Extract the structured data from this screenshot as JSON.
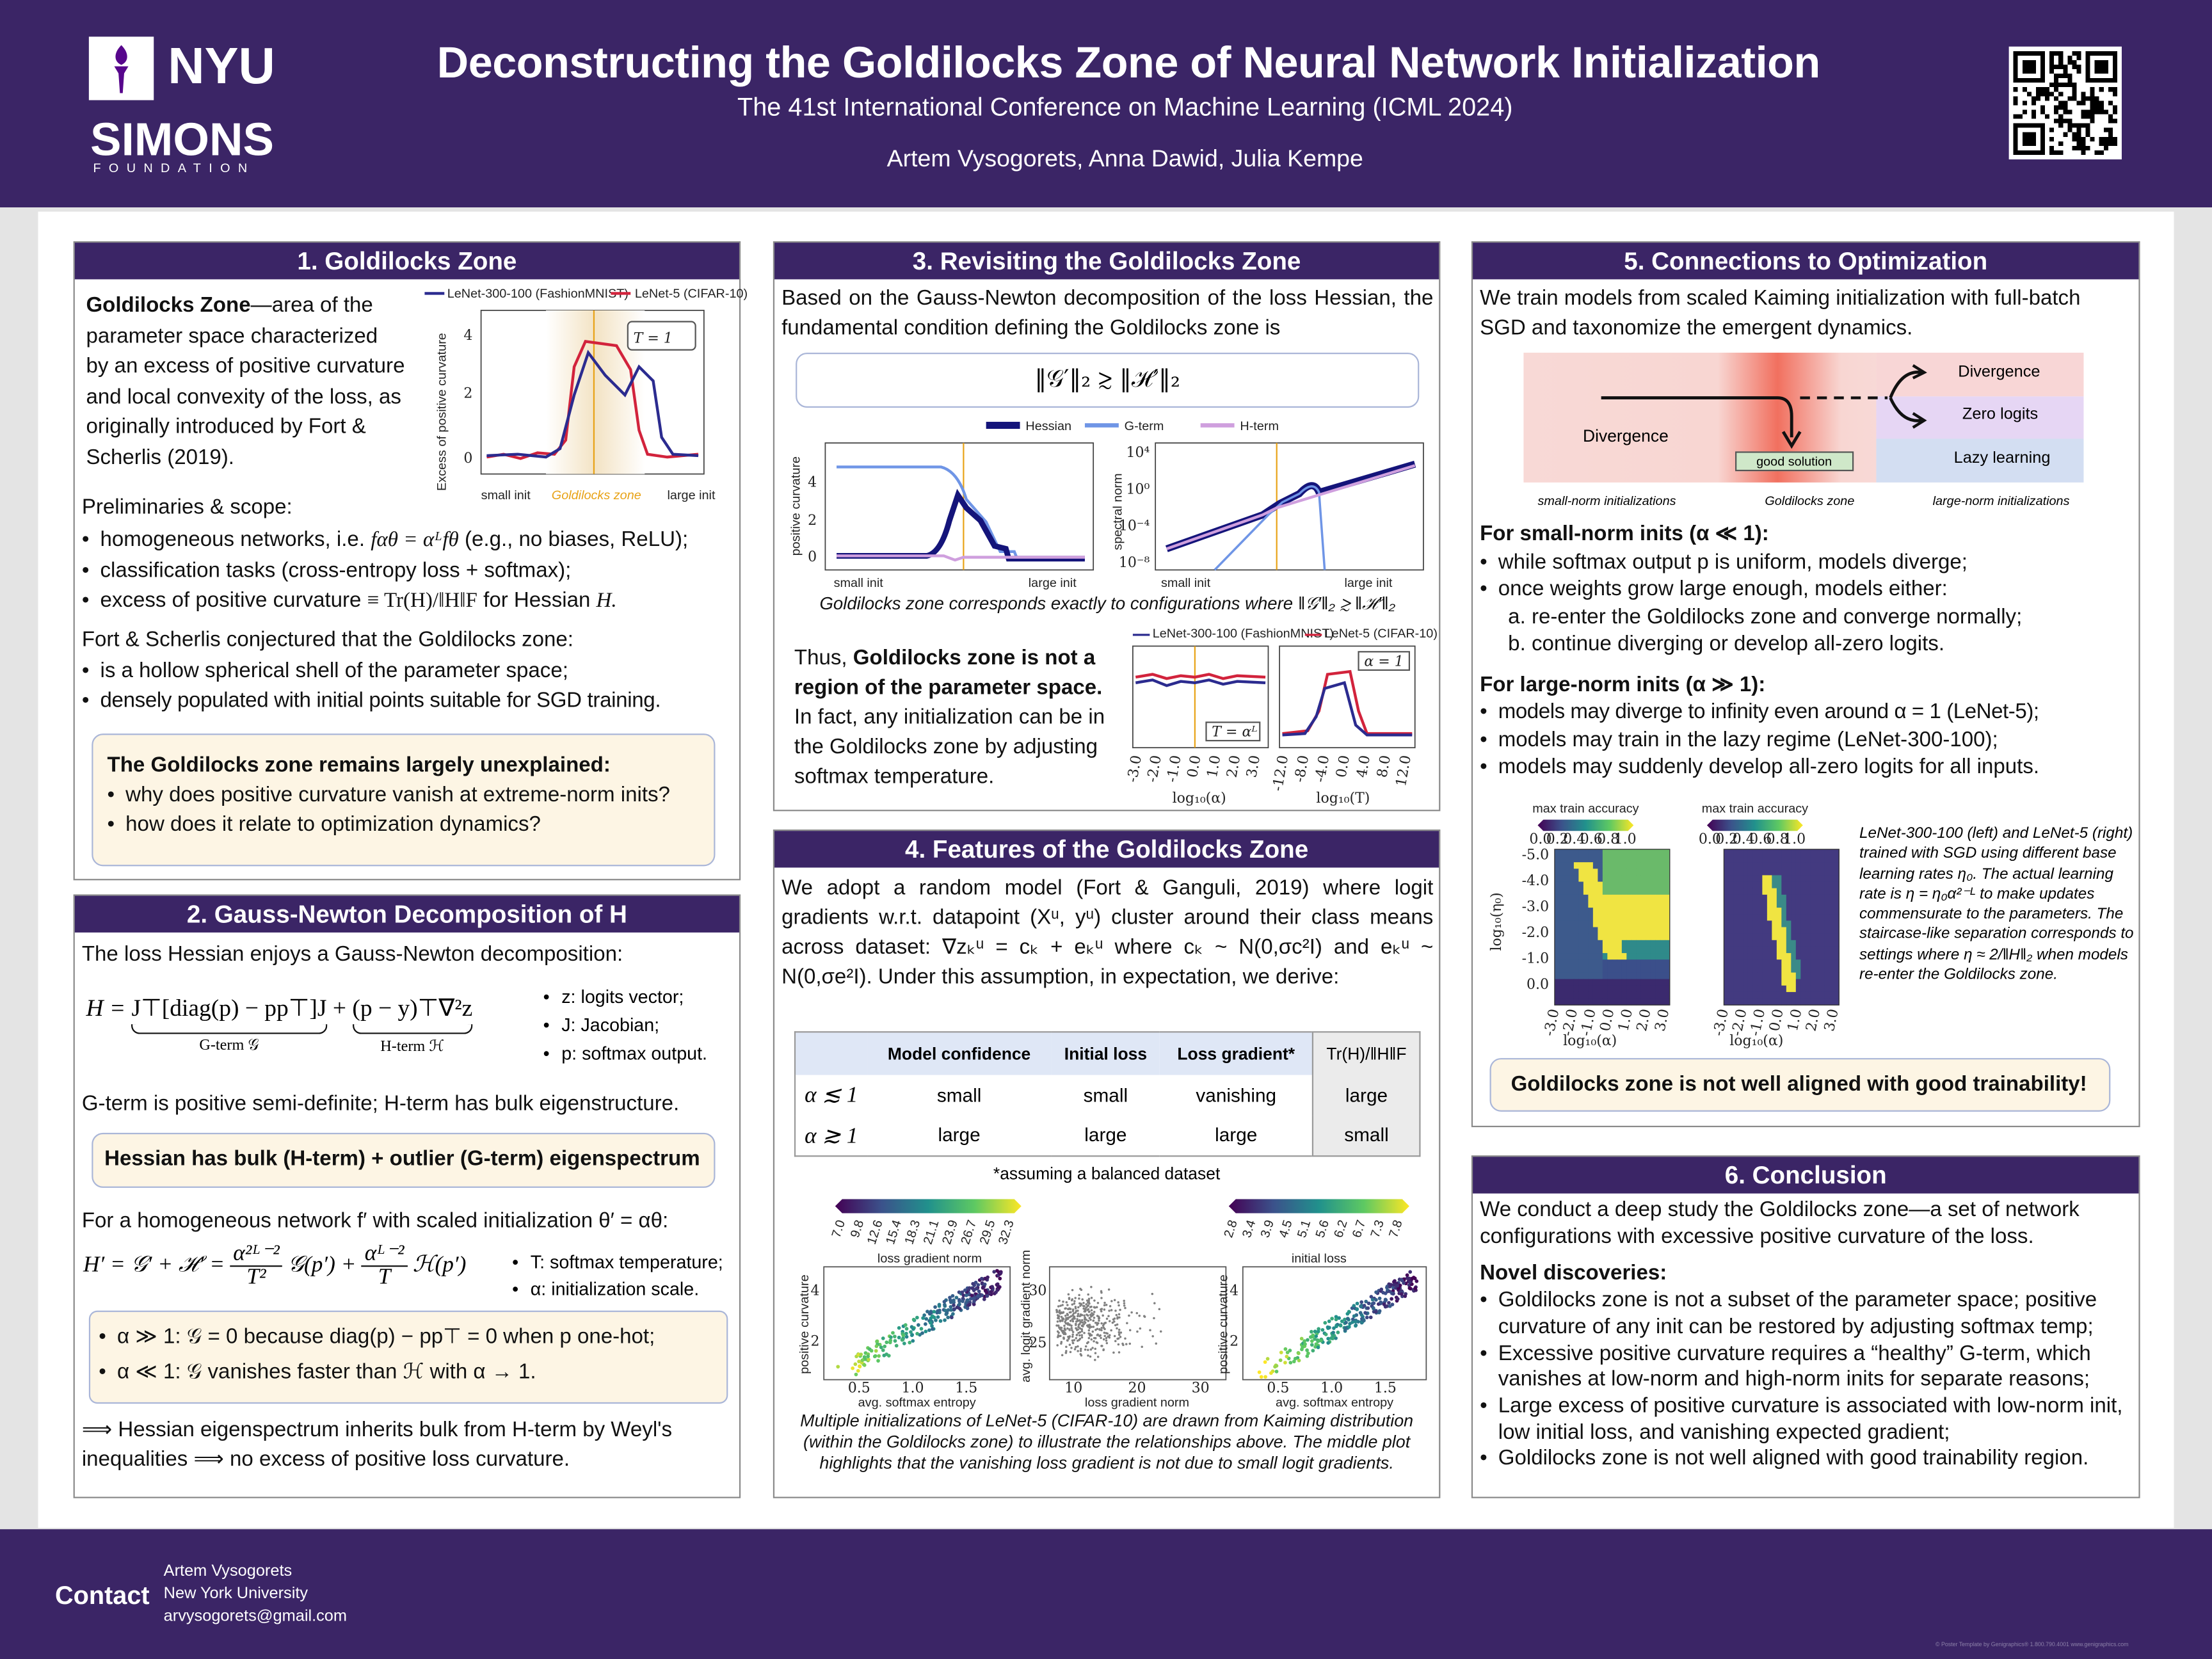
{
  "header": {
    "logo_nyu": "NYU",
    "logo_simons": "SIMONS",
    "logo_foundation": "FOUNDATION",
    "title": "Deconstructing the Goldilocks Zone of Neural Network Initialization",
    "subtitle": "The 41st International Conference on Machine Learning (ICML 2024)",
    "authors": "Artem Vysogorets, Anna Dawid, Julia Kempe"
  },
  "colors": {
    "brand": "#3b2566",
    "callout": "#fdf5e4",
    "goldilocks": "#e8a317",
    "hessian": "#14147a",
    "gterm": "#6f95e6",
    "hterm": "#cf9fde",
    "lenet300": "#2b2b8f",
    "lenet5": "#d2233c"
  },
  "s1": {
    "title": "1. Goldilocks Zone",
    "intro_bold": "Goldilocks Zone",
    "intro_rest": "—area of the parameter space characterized by an excess of positive curvature and local convexity of the loss, as originally introduced by Fort & Scherlis (2019).",
    "plot": {
      "legend": [
        "LeNet-300-100 (FashionMNIST)",
        "LeNet-5 (CIFAR-10)"
      ],
      "ylabel": "Excess of positive curvature",
      "yticks": [
        "4",
        "2",
        "0"
      ],
      "x_small": "small init",
      "x_zone": "Goldilocks zone",
      "x_large": "large init",
      "annotation": "T = 1"
    },
    "prelim": "Preliminaries & scope:",
    "bullets": [
      "homogeneous networks, i.e. ",
      "classification tasks (cross-entropy loss + softmax);",
      "excess of positive curvature "
    ],
    "b1_math": "fαθ = αᴸfθ",
    "b1_rest": " (e.g., no biases, ReLU);",
    "b3_math": "≡ Tr(H)/‖H‖F",
    "b3_rest": " for Hessian ",
    "b3_h": "H.",
    "conjecture": "Fort & Scherlis conjectured that the Goldilocks zone:",
    "bullets2": [
      "is a hollow spherical shell of the parameter space;",
      "densely populated with initial points suitable for SGD training."
    ],
    "callout_title": "The Goldilocks zone remains largely unexplained:",
    "callout_bullets": [
      "why does positive curvature vanish at extreme-norm inits?",
      "how does it relate to optimization dynamics?"
    ]
  },
  "s2": {
    "title": "2. Gauss-Newton Decomposition of H",
    "intro": "The loss Hessian enjoys a Gauss-Newton decomposition:",
    "eq_lhs": "H =",
    "eq_g": "J⊤[diag(p) − pp⊤]J",
    "eq_plus": "+",
    "eq_h": "(p − y)⊤∇²z",
    "g_label": "G-term 𝒢",
    "h_label": "H-term ℋ",
    "side": [
      "z: logits vector;",
      "J: Jacobian;",
      "p: softmax output."
    ],
    "psd": "G-term is positive semi-definite; H-term has bulk eigenstructure.",
    "callout": "Hessian has bulk (H-term) + outlier (G-term) eigenspectrum",
    "homog": "For a homogeneous network f′ with scaled initialization θ′ = αθ:",
    "eq2_lhs": "H′ = 𝒢′ + ℋ′ =",
    "eq2_n1": "α²ᴸ⁻²",
    "eq2_d1": "T²",
    "eq2_g": "𝒢(p′) +",
    "eq2_n2": "αᴸ⁻²",
    "eq2_d2": "T",
    "eq2_h": "ℋ(p′)",
    "side2": [
      "T: softmax temperature;",
      "α: initialization scale."
    ],
    "box": [
      "α ≫ 1: 𝒢 = 0 because diag(p) − pp⊤ = 0 when p one-hot;",
      "α ≪ 1: 𝒢 vanishes faster than ℋ with α → 1."
    ],
    "conclusion": "⟹ Hessian eigenspectrum inherits bulk from H-term by Weyl's inequalities ⟹ no excess of positive loss curvature."
  },
  "s3": {
    "title": "3. Revisiting the Goldilocks Zone",
    "intro": "Based on the Gauss-Newton decomposition of the loss Hessian, the fundamental condition defining the Goldilocks zone is",
    "eq": "‖𝒢′‖₂ ≳ ‖ℋ′‖₂",
    "legend": [
      "Hessian",
      "G-term",
      "H-term"
    ],
    "left_ylabel": "positive curvature",
    "left_yticks": [
      "4",
      "2",
      "0"
    ],
    "right_ylabel": "spectral norm",
    "right_yticks": [
      "10⁴",
      "10⁰",
      "10⁻⁴",
      "10⁻⁸"
    ],
    "x_small": "small init",
    "x_large": "large init",
    "caption": "Goldilocks zone corresponds exactly to configurations where  ‖𝒢′‖₂ ≳ ‖ℋ′‖₂",
    "thus_pre": "Thus, ",
    "thus_bold": "Goldilocks zone is not a region of the parameter space.",
    "thus_rest": " In fact, any initialization can be in the Goldilocks zone by adjusting softmax temperature.",
    "small_legend": [
      "LeNet-300-100 (FashionMNIST)",
      "LeNet-5 (CIFAR-10)"
    ],
    "small_left_note": "T = αᴸ",
    "small_right_note": "α = 1",
    "small_left_xticks": [
      "-3.0",
      "-2.0",
      "-1.0",
      "0.0",
      "1.0",
      "2.0",
      "3.0"
    ],
    "small_left_xlabel": "log₁₀(α)",
    "small_right_xticks": [
      "-12.0",
      "-8.0",
      "-4.0",
      "0.0",
      "4.0",
      "8.0",
      "12.0"
    ],
    "small_right_xlabel": "log₁₀(T)"
  },
  "s4": {
    "title": "4. Features of the Goldilocks Zone",
    "intro": "We adopt a random model (Fort & Ganguli, 2019) where logit gradients w.r.t. datapoint (Xᵘ, yᵘ) cluster around their class means across dataset: ∇zₖᵘ = cₖ + eₖᵘ where cₖ ~ N(0,σc²I) and eₖᵘ ~ N(0,σe²I). Under this assumption, in expectation, we derive:",
    "table": {
      "headers": [
        "",
        "Model confidence",
        "Initial loss",
        "Loss gradient*",
        "Tr(H)/‖H‖F"
      ],
      "rows": [
        [
          "α ≲ 1",
          "small",
          "small",
          "vanishing",
          "large"
        ],
        [
          "α ≳ 1",
          "large",
          "large",
          "large",
          "small"
        ]
      ]
    },
    "note": "*assuming a balanced dataset",
    "cb1_label": "loss gradient norm",
    "cb1_ticks": [
      "7.0",
      "9.8",
      "12.6",
      "15.4",
      "18.3",
      "21.1",
      "23.9",
      "26.7",
      "29.5",
      "32.3"
    ],
    "cb2_label": "initial loss",
    "cb2_ticks": [
      "2.8",
      "3.4",
      "3.9",
      "4.5",
      "5.1",
      "5.6",
      "6.2",
      "6.7",
      "7.3",
      "7.8"
    ],
    "p1_ylabel": "positive curvature",
    "p1_xlabel": "avg. softmax entropy",
    "p1_xticks": [
      "0.5",
      "1.0",
      "1.5"
    ],
    "p1_yticks": [
      "4",
      "2"
    ],
    "p2_ylabel": "avg. logit gradient norm",
    "p2_xlabel": "loss gradient norm",
    "p2_xticks": [
      "10",
      "20",
      "30"
    ],
    "p2_yticks": [
      "30",
      "25"
    ],
    "p3_ylabel": "positive curvature",
    "p3_xlabel": "avg. softmax entropy",
    "p3_xticks": [
      "0.5",
      "1.0",
      "1.5"
    ],
    "p3_yticks": [
      "4",
      "2"
    ],
    "caption": "Multiple initializations of LeNet-5 (CIFAR-10) are drawn from Kaiming distribution (within the Goldilocks zone) to illustrate the relationships above. The middle plot highlights that the vanishing loss gradient is not due to small logit gradients."
  },
  "s5": {
    "title": "5. Connections to Optimization",
    "intro": "We train models from scaled Kaiming initialization with full-batch SGD and taxonomize the emergent dynamics.",
    "diagram": {
      "divergence_left": "Divergence",
      "good": "good solution",
      "divergence_right": "Divergence",
      "zero": "Zero logits",
      "lazy": "Lazy learning",
      "lab_small": "small-norm initializations",
      "lab_zone": "Goldilocks zone",
      "lab_large": "large-norm initializations"
    },
    "small_head": "For small-norm inits (α ≪ 1):",
    "small_bullets": [
      "while softmax output p is uniform, models diverge;",
      "once weights grow large enough, models either:"
    ],
    "small_sub": [
      "a. re-enter the Goldilocks zone and converge normally;",
      "b. continue diverging or develop all-zero logits."
    ],
    "large_head": "For large-norm inits (α ≫ 1):",
    "large_bullets": [
      "models may diverge to infinity even around α = 1 (LeNet-5);",
      "models may train in the lazy regime (LeNet-300-100);",
      "models may suddenly develop all-zero logits for all inputs."
    ],
    "hm_label": "max train accuracy",
    "hm_ticks": [
      "0.0",
      "0.2",
      "0.4",
      "0.6",
      "0.8",
      "1.0"
    ],
    "hm_yticks": [
      "-5.0",
      "-4.0",
      "-3.0",
      "-2.0",
      "-1.0",
      "0.0"
    ],
    "hm_ylabel": "log₁₀(η₀)",
    "hm_xticks": [
      "-3.0",
      "-2.0",
      "-1.0",
      "0.0",
      "1.0",
      "2.0",
      "3.0"
    ],
    "hm_xlabel": "log₁₀(α)",
    "caption": "LeNet-300-100 (left) and LeNet-5 (right) trained with SGD using different base learning rates η₀. The actual learning rate is η = η₀α²⁻ᴸ to make updates commensurate to the parameters. The staircase-like separation corresponds to settings where η ≈ 2/‖H‖₂ when models re-enter the Goldilocks zone.",
    "callout": "Goldilocks zone is not well aligned with good trainability!"
  },
  "s6": {
    "title": "6. Conclusion",
    "intro": "We conduct a deep study the Goldilocks zone—a set of network configurations with excessive positive curvature of the loss.",
    "novel": "Novel discoveries:",
    "bullets": [
      "Goldilocks zone is not a subset of the parameter space; positive curvature of any init can be restored by adjusting softmax temp;",
      "Excessive positive curvature requires a “healthy” G-term, which vanishes at low-norm and high-norm inits for separate reasons;",
      "Large excess of positive curvature is associated with low-norm init, low initial loss, and vanishing expected gradient;",
      "Goldilocks zone is not well aligned with good trainability region."
    ]
  },
  "footer": {
    "contact": "Contact",
    "name": "Artem Vysogorets",
    "affil": "New York University",
    "email": "arvysogorets@gmail.com",
    "credit": "© Poster Template by Genigraphics® 1.800.790.4001 www.genigraphics.com"
  }
}
